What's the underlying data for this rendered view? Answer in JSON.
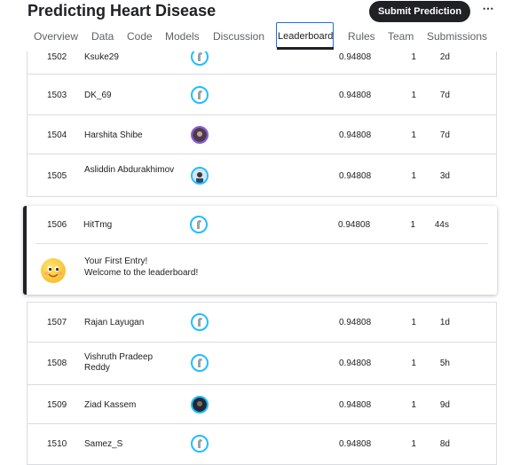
{
  "header": {
    "title": "Predicting Heart Disease",
    "submit_label": "Submit Prediction",
    "more_label": "⋯"
  },
  "tabs": [
    {
      "label": "Overview"
    },
    {
      "label": "Data"
    },
    {
      "label": "Code"
    },
    {
      "label": "Models"
    },
    {
      "label": "Discussion"
    },
    {
      "label": "Leaderboard",
      "active": true
    },
    {
      "label": "Rules"
    },
    {
      "label": "Team"
    },
    {
      "label": "Submissions"
    }
  ],
  "rows_above": [
    {
      "rank": "1502",
      "name": "Ksuke29",
      "score": "0.94808",
      "entries": "1",
      "last": "2d",
      "avatar": "default"
    },
    {
      "rank": "1503",
      "name": "DK_69",
      "score": "0.94808",
      "entries": "1",
      "last": "7d",
      "avatar": "default"
    },
    {
      "rank": "1504",
      "name": "Harshita Shibe",
      "score": "0.94808",
      "entries": "1",
      "last": "7d",
      "avatar": "photo"
    },
    {
      "rank": "1505",
      "name": "Asliddin Abdurakhimov",
      "score": "0.94808",
      "entries": "1",
      "last": "3d",
      "avatar": "photo"
    }
  ],
  "highlight": {
    "rank": "1506",
    "name": "HitTmg",
    "score": "0.94808",
    "entries": "1",
    "last": "44s",
    "message_line1": "Your First Entry!",
    "message_line2": "Welcome to the leaderboard!"
  },
  "rows_below": [
    {
      "rank": "1507",
      "name": "Rajan Layugan",
      "score": "0.94808",
      "entries": "1",
      "last": "1d",
      "avatar": "default"
    },
    {
      "rank": "1508",
      "name": "Vishruth Pradeep Reddy",
      "score": "0.94808",
      "entries": "1",
      "last": "5h",
      "avatar": "default"
    },
    {
      "rank": "1509",
      "name": "Ziad Kassem",
      "score": "0.94808",
      "entries": "1",
      "last": "9d",
      "avatar": "photo"
    },
    {
      "rank": "1510",
      "name": "Samez_S",
      "score": "0.94808",
      "entries": "1",
      "last": "8d",
      "avatar": "default"
    }
  ],
  "colors": {
    "accent": "#20beff",
    "tab_focus": "#1a73e8",
    "button_bg": "#202124"
  }
}
